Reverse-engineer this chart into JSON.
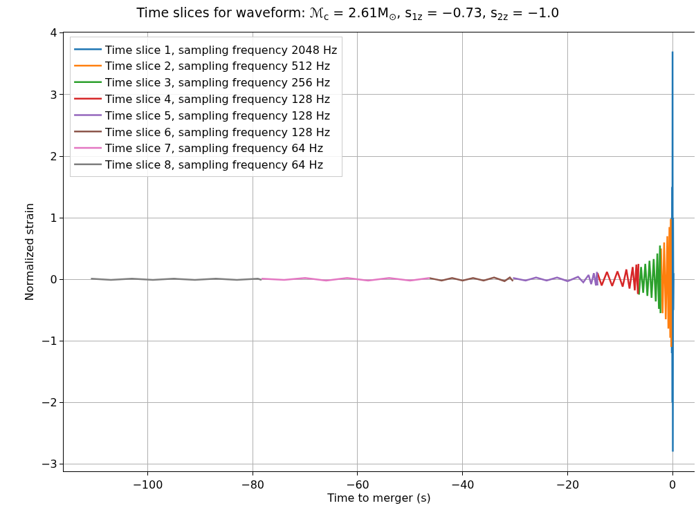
{
  "chart_data": {
    "type": "line",
    "title": "Time slices for waveform: ℳ$_{c}$ = 2.61M$_{⊙}$, s$_{1z}$ = −0.73, s$_{2z}$ = −1.0",
    "xlabel": "Time to merger (s)",
    "ylabel": "Normalized strain",
    "xlim": [
      -116,
      4.2
    ],
    "ylim": [
      -3.12,
      4.01
    ],
    "xticks": [
      {
        "value": -100,
        "label": "−100"
      },
      {
        "value": -80,
        "label": "−80"
      },
      {
        "value": -60,
        "label": "−60"
      },
      {
        "value": -40,
        "label": "−40"
      },
      {
        "value": -20,
        "label": "−20"
      },
      0
    ],
    "yticks": [
      {
        "value": -3,
        "label": "−3"
      },
      {
        "value": -2,
        "label": "−2"
      },
      {
        "value": -1,
        "label": "−1"
      },
      0,
      1,
      2,
      3,
      4
    ],
    "grid": true,
    "legend": "top left",
    "marker": "none",
    "line_style": "solid",
    "series": [
      {
        "name": "Time slice 1, sampling frequency 2048 Hz",
        "color": "#1f77b4",
        "x": [
          -0.2,
          -0.15,
          -0.1,
          -0.05,
          0,
          0.05,
          0.1,
          0.15,
          0.2
        ],
        "values": [
          1.0,
          -1.2,
          1.5,
          -2.0,
          3.7,
          -2.8,
          1.0,
          -0.5,
          0.1
        ]
      },
      {
        "name": "Time slice 2, sampling frequency 512 Hz",
        "color": "#ff7f0e",
        "x": [
          -2.2,
          -1.9,
          -1.6,
          -1.3,
          -1.0,
          -0.8,
          -0.6,
          -0.45,
          -0.35,
          -0.25
        ],
        "values": [
          0.5,
          -0.55,
          0.6,
          -0.65,
          0.7,
          -0.8,
          0.85,
          -0.95,
          0.98,
          -1.1
        ]
      },
      {
        "name": "Time slice 3, sampling frequency 256 Hz",
        "color": "#2ca02c",
        "x": [
          -6.4,
          -6.0,
          -5.6,
          -5.2,
          -4.8,
          -4.4,
          -4.0,
          -3.6,
          -3.2,
          -2.9,
          -2.6,
          -2.4,
          -2.3
        ],
        "values": [
          -0.25,
          0.2,
          -0.22,
          0.25,
          -0.27,
          0.3,
          -0.3,
          0.33,
          -0.36,
          0.42,
          -0.48,
          0.55,
          -0.55
        ]
      },
      {
        "name": "Time slice 4, sampling frequency 128 Hz",
        "color": "#d62728",
        "x": [
          -14.3,
          -13.5,
          -12.5,
          -11.5,
          -10.5,
          -9.5,
          -8.8,
          -8.2,
          -7.6,
          -7.2,
          -6.9,
          -6.6,
          -6.5
        ],
        "values": [
          0.1,
          -0.1,
          0.12,
          -0.11,
          0.13,
          -0.12,
          0.16,
          -0.15,
          0.2,
          -0.18,
          0.24,
          -0.24,
          0.25
        ]
      },
      {
        "name": "Time slice 5, sampling frequency 128 Hz",
        "color": "#9467bd",
        "x": [
          -30.4,
          -28,
          -26,
          -24,
          -22,
          -20,
          -18,
          -17,
          -16,
          -15.5,
          -15,
          -14.6,
          -14.4,
          -14.3
        ],
        "values": [
          0.02,
          -0.02,
          0.03,
          -0.02,
          0.03,
          -0.03,
          0.04,
          -0.05,
          0.07,
          -0.08,
          0.1,
          -0.1,
          0.12,
          -0.1
        ]
      },
      {
        "name": "Time slice 6, sampling frequency 128 Hz",
        "color": "#8c564b",
        "x": [
          -46.3,
          -44,
          -42,
          -40,
          -38,
          -36,
          -34,
          -32,
          -31,
          -30.4
        ],
        "values": [
          0.02,
          -0.02,
          0.02,
          -0.02,
          0.02,
          -0.02,
          0.03,
          -0.03,
          0.03,
          -0.03
        ]
      },
      {
        "name": "Time slice 7, sampling frequency 64 Hz",
        "color": "#e377c2",
        "x": [
          -78.3,
          -74,
          -70,
          -66,
          -62,
          -58,
          -54,
          -50,
          -46.3
        ],
        "values": [
          0.01,
          -0.01,
          0.02,
          -0.02,
          0.02,
          -0.02,
          0.02,
          -0.02,
          0.02
        ]
      },
      {
        "name": "Time slice 8, sampling frequency 64 Hz",
        "color": "#7f7f7f",
        "x": [
          -110.8,
          -107,
          -103,
          -99,
          -95,
          -91,
          -87,
          -83,
          -79,
          -78.3
        ],
        "values": [
          0.01,
          -0.01,
          0.01,
          -0.01,
          0.01,
          -0.01,
          0.01,
          -0.01,
          0.01,
          -0.01
        ]
      }
    ]
  }
}
